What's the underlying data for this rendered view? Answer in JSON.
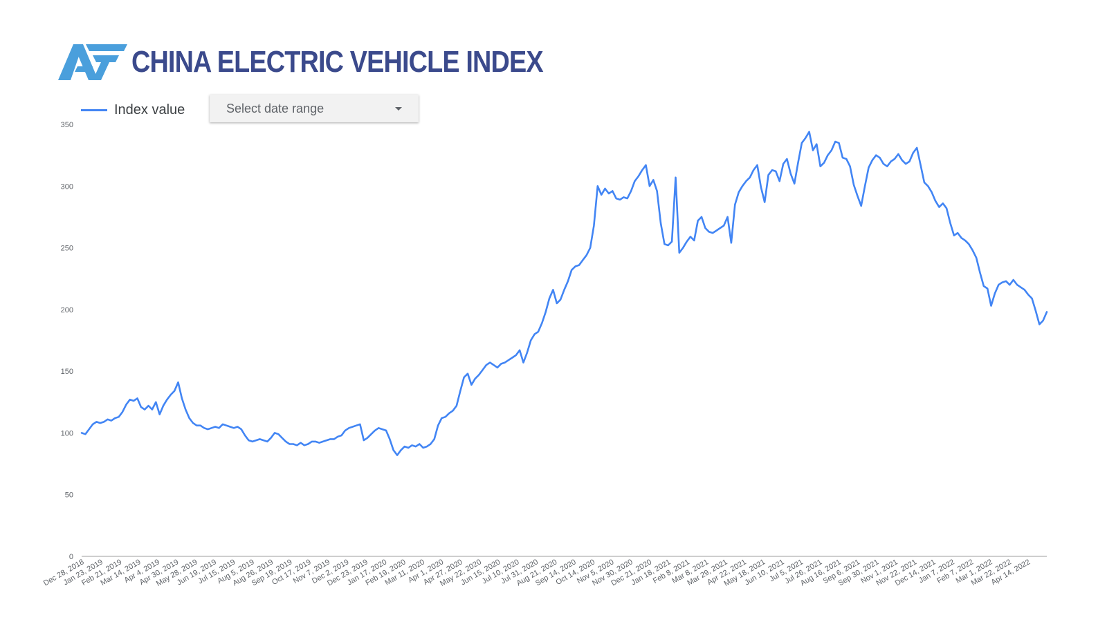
{
  "header": {
    "title": "CHINA ELECTRIC VEHICLE INDEX",
    "logo_icon": "af-logo-icon"
  },
  "controls": {
    "date_range_label": "Select date range",
    "dropdown_icon": "caret-down-icon"
  },
  "colors": {
    "title": "#3b4a8c",
    "logo": "#4a9fdc",
    "series": "#4285f4"
  },
  "chart_data": {
    "type": "line",
    "title": "",
    "xlabel": "",
    "ylabel": "",
    "ylim": [
      0,
      350
    ],
    "yticks": [
      0,
      50,
      100,
      150,
      200,
      250,
      300,
      350
    ],
    "grid": false,
    "legend_position": "top-left",
    "x_tick_labels": [
      "Dec 28, 2018",
      "Jan 23, 2019",
      "Feb 21, 2019",
      "Mar 14, 2019",
      "Apr 4, 2019",
      "Apr 30, 2019",
      "May 28, 2019",
      "Jun 19, 2019",
      "Jul 15, 2019",
      "Aug 5, 2019",
      "Aug 26, 2019",
      "Sep 19, 2019",
      "Oct 17, 2019",
      "Nov 7, 2019",
      "Dec 2, 2019",
      "Dec 23, 2019",
      "Jan 17, 2020",
      "Feb 19, 2020",
      "Mar 11, 2020",
      "Apr 1, 2020",
      "Apr 27, 2020",
      "May 22, 2020",
      "Jun 15, 2020",
      "Jul 10, 2020",
      "Jul 31, 2020",
      "Aug 21, 2020",
      "Sep 14, 2020",
      "Oct 14, 2020",
      "Nov 5, 2020",
      "Nov 30, 2020",
      "Dec 21, 2020",
      "Jan 18, 2021",
      "Feb 8, 2021",
      "Mar 8, 2021",
      "Mar 29, 2021",
      "Apr 22, 2021",
      "May 18, 2021",
      "Jun 10, 2021",
      "Jul 5, 2021",
      "Jul 26, 2021",
      "Aug 16, 2021",
      "Sep 6, 2021",
      "Sep 30, 2021",
      "Nov 1, 2021",
      "Nov 22, 2021",
      "Dec 14, 2021",
      "Jan 7, 2022",
      "Feb 7, 2022",
      "Mar 1, 2022",
      "Mar 22, 2022",
      "Apr 14, 2022"
    ],
    "series": [
      {
        "name": "Index value",
        "color": "#4285f4",
        "values": [
          100,
          99,
          103,
          107,
          109,
          108,
          109,
          111,
          110,
          112,
          113,
          117,
          123,
          127,
          126,
          128,
          121,
          119,
          122,
          119,
          125,
          115,
          122,
          127,
          131,
          134,
          141,
          128,
          119,
          112,
          108,
          106,
          106,
          104,
          103,
          104,
          105,
          104,
          107,
          106,
          105,
          104,
          105,
          103,
          98,
          94,
          93,
          94,
          95,
          94,
          93,
          96,
          100,
          99,
          96,
          93,
          91,
          91,
          90,
          92,
          90,
          91,
          93,
          93,
          92,
          93,
          94,
          95,
          95,
          97,
          98,
          102,
          104,
          105,
          106,
          107,
          94,
          96,
          99,
          102,
          104,
          103,
          102,
          95,
          86,
          82,
          86,
          89,
          88,
          90,
          89,
          91,
          88,
          89,
          91,
          95,
          106,
          112,
          113,
          116,
          118,
          122,
          134,
          145,
          148,
          139,
          144,
          147,
          151,
          155,
          157,
          155,
          153,
          156,
          157,
          159,
          161,
          163,
          167,
          157,
          165,
          175,
          180,
          182,
          189,
          198,
          209,
          216,
          205,
          208,
          216,
          223,
          232,
          235,
          236,
          240,
          244,
          250,
          268,
          300,
          293,
          298,
          294,
          296,
          290,
          289,
          291,
          290,
          296,
          304,
          308,
          313,
          317,
          300,
          305,
          296,
          270,
          253,
          252,
          255,
          307,
          246,
          250,
          255,
          259,
          256,
          272,
          275,
          266,
          263,
          262,
          264,
          266,
          268,
          275,
          254,
          285,
          295,
          300,
          304,
          307,
          313,
          317,
          299,
          287,
          309,
          313,
          312,
          304,
          318,
          322,
          310,
          302,
          319,
          335,
          339,
          344,
          329,
          334,
          316,
          319,
          325,
          329,
          336,
          335,
          323,
          322,
          316,
          301,
          292,
          284,
          300,
          315,
          321,
          325,
          323,
          318,
          316,
          320,
          322,
          326,
          321,
          318,
          320,
          327,
          331,
          317,
          303,
          300,
          295,
          288,
          283,
          286,
          282,
          270,
          260,
          262,
          258,
          256,
          253,
          248,
          242,
          230,
          219,
          217,
          203,
          213,
          220,
          222,
          223,
          220,
          224,
          220,
          218,
          216,
          212,
          209,
          199,
          188,
          191,
          198
        ]
      }
    ]
  }
}
